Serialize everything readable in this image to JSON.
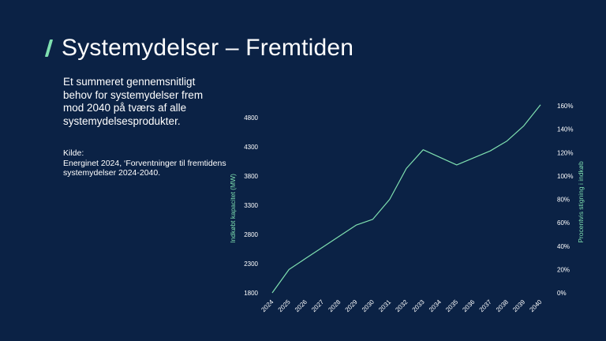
{
  "slide": {
    "title": "Systemydelser – Fremtiden",
    "description": "Et summeret gennemsnitligt behov for systemydelser frem mod 2040 på tværs af alle systemydelsesprodukter.",
    "source_label": "Kilde:",
    "source_text": "Energinet 2024, ‘Forventninger til fremtidens systemydelser 2024-2040.",
    "accent_color": "#7fe0b0",
    "background_color": "#0b2245"
  },
  "chart_data": {
    "type": "line",
    "title": "",
    "categories": [
      "2024",
      "2025",
      "2026",
      "2027",
      "2028",
      "2029",
      "2030",
      "2031",
      "2032",
      "2033",
      "2034",
      "2035",
      "2036",
      "2037",
      "2038",
      "2039",
      "2040"
    ],
    "series": [
      {
        "values": [
          1800,
          2200,
          2390,
          2580,
          2770,
          2960,
          3060,
          3400,
          3930,
          4250,
          4120,
          3990,
          4110,
          4230,
          4400,
          4660,
          5020
        ]
      }
    ],
    "ylabel": "Indkøbt kapacitet (MW)",
    "y2label": "Procentvis stigning i indkøb",
    "ylim": [
      1800,
      4800
    ],
    "yticks": [
      "1800",
      "2300",
      "2800",
      "3300",
      "3800",
      "4300",
      "4800"
    ],
    "y2lim": [
      0,
      160
    ],
    "y2ticks": [
      "0%",
      "20%",
      "40%",
      "60%",
      "80%",
      "100%",
      "120%",
      "140%",
      "160%"
    ],
    "line_color": "#7fe0b0",
    "grid": false,
    "legend": "none"
  }
}
